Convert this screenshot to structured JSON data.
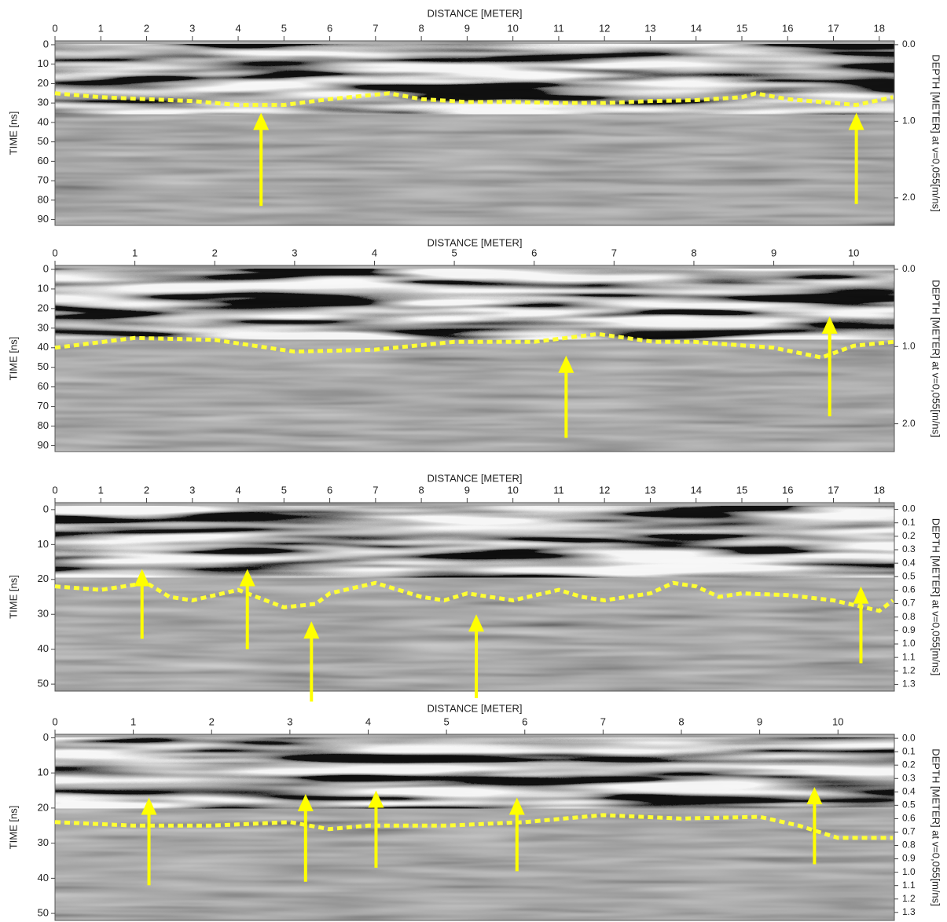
{
  "chart_data": [
    {
      "type": "line",
      "title": "DISTANCE [METER]",
      "y_label": "TIME [ns]",
      "y2_label": "DEPTH [METER] at v=0,055[m/ns]",
      "xlim": [
        0,
        18.33
      ],
      "xticks": [
        0,
        1,
        2,
        3,
        4,
        5,
        6,
        7,
        8,
        9,
        10,
        11,
        12,
        13,
        14,
        15,
        16,
        17,
        18
      ],
      "ylim": [
        -2,
        93
      ],
      "yticks": [
        0,
        10,
        20,
        30,
        40,
        50,
        60,
        70,
        80,
        90
      ],
      "y2lim": [
        -0.05,
        2.36
      ],
      "y2ticks": [
        {
          "value": 0,
          "label": "0.0"
        },
        {
          "value": 1,
          "label": "1.0"
        },
        {
          "value": 2,
          "label": "2.0"
        }
      ],
      "x": [
        0,
        1,
        2,
        3,
        4,
        5,
        6,
        7.3,
        8,
        9,
        10,
        11,
        12,
        13,
        14,
        15,
        15.3,
        16,
        17,
        17.5,
        18.3
      ],
      "series": [
        {
          "color": "#ffff33",
          "values": [
            25,
            27,
            28,
            29,
            31,
            31,
            28,
            25,
            28,
            29.5,
            29.5,
            30,
            30,
            29,
            28.5,
            27,
            25,
            28,
            30,
            31,
            27
          ]
        }
      ],
      "arrows": {
        "color": "#ffff00",
        "x": [
          4.5,
          17.5
        ],
        "tip": [
          35,
          35
        ],
        "tail": [
          83,
          82
        ]
      }
    },
    {
      "type": "line",
      "title": "DISTANCE [METER]",
      "y_label": "TIME [ns]",
      "y2_label": "DEPTH [METER] at v=0,055[m/ns]",
      "xlim": [
        0,
        10.51
      ],
      "xticks": [
        0,
        1,
        2,
        3,
        4,
        5,
        6,
        7,
        8,
        9,
        10
      ],
      "ylim": [
        -2,
        93
      ],
      "yticks": [
        0,
        10,
        20,
        30,
        40,
        50,
        60,
        70,
        80,
        90
      ],
      "y2lim": [
        -0.05,
        2.36
      ],
      "y2ticks": [
        {
          "value": 0,
          "label": "0.0"
        },
        {
          "value": 1,
          "label": "1.0"
        },
        {
          "value": 2,
          "label": "2.0"
        }
      ],
      "x": [
        0,
        1,
        2,
        3,
        4,
        5,
        6,
        6.8,
        7.5,
        8,
        9,
        9.6,
        10,
        10.5
      ],
      "series": [
        {
          "color": "#ffff33",
          "values": [
            40,
            35,
            36,
            42,
            41,
            37,
            37,
            33,
            37,
            37,
            40,
            45,
            39,
            37
          ]
        }
      ],
      "arrows": {
        "color": "#ffff00",
        "x": [
          6.4,
          9.7
        ],
        "tip": [
          44,
          24
        ],
        "tail": [
          86,
          75
        ]
      }
    },
    {
      "type": "line",
      "title": "DISTANCE [METER]",
      "y_label": "TIME [ns]",
      "y2_label": "DEPTH [METER] at v=0,055[m/ns]",
      "xlim": [
        0,
        18.33
      ],
      "xticks": [
        0,
        1,
        2,
        3,
        4,
        5,
        6,
        7,
        8,
        9,
        10,
        11,
        12,
        13,
        14,
        15,
        16,
        17,
        18
      ],
      "ylim": [
        -2,
        52
      ],
      "yticks": [
        0,
        10,
        20,
        30,
        40,
        50
      ],
      "y2lim": [
        -0.05,
        1.35
      ],
      "y2ticks": [
        {
          "value": 0,
          "label": "0.0"
        },
        0.1,
        0.2,
        0.3,
        0.4,
        0.5,
        0.6,
        0.7,
        0.8,
        0.9,
        {
          "value": 1,
          "label": "1.0"
        },
        1.1,
        1.2,
        1.3
      ],
      "x": [
        0,
        1,
        2,
        2.5,
        3,
        4,
        5,
        5.7,
        6,
        7,
        8,
        8.5,
        9,
        10,
        11,
        11.5,
        12,
        13,
        13.5,
        14,
        14.5,
        15,
        16,
        17,
        18,
        18.3
      ],
      "series": [
        {
          "color": "#ffff33",
          "values": [
            22,
            23,
            21,
            25,
            26,
            23,
            28,
            27,
            24,
            21,
            25,
            26,
            24,
            26,
            23,
            25,
            26,
            24,
            21,
            22,
            25,
            24,
            24.5,
            26,
            29,
            26
          ]
        }
      ],
      "arrows": {
        "color": "#ffff00",
        "x": [
          1.9,
          4.2,
          5.6,
          9.2,
          17.6
        ],
        "tip": [
          17,
          17,
          32,
          30,
          22
        ],
        "tail": [
          37,
          40,
          55,
          54,
          44
        ]
      }
    },
    {
      "type": "line",
      "title": "DISTANCE [METER]",
      "y_label": "TIME [ns]",
      "y2_label": "DEPTH [METER] at v=0,055[m/ns]",
      "xlim": [
        0,
        10.72
      ],
      "xticks": [
        0,
        1,
        2,
        3,
        4,
        5,
        6,
        7,
        8,
        9,
        10
      ],
      "ylim": [
        -1,
        52
      ],
      "yticks": [
        0,
        10,
        20,
        30,
        40,
        50
      ],
      "y2lim": [
        -0.03,
        1.36
      ],
      "y2ticks": [
        {
          "value": 0,
          "label": "0.0"
        },
        0.1,
        0.2,
        0.3,
        0.4,
        0.5,
        0.6,
        0.7,
        0.8,
        0.9,
        {
          "value": 1,
          "label": "1.0"
        },
        1.1,
        1.2,
        1.3
      ],
      "x": [
        0,
        1,
        2,
        3,
        3.5,
        4,
        5,
        6,
        7,
        8,
        9,
        9.5,
        10,
        10.7
      ],
      "series": [
        {
          "color": "#ffff33",
          "values": [
            24,
            25,
            25,
            24,
            26,
            25,
            25,
            24,
            22,
            23,
            22.5,
            25,
            28.5,
            28.5
          ]
        }
      ],
      "arrows": {
        "color": "#ffff00",
        "x": [
          1.2,
          3.2,
          4.1,
          5.9,
          9.7
        ],
        "tip": [
          17,
          16,
          15,
          17,
          14
        ],
        "tail": [
          42,
          41,
          37,
          38,
          36
        ]
      }
    }
  ]
}
